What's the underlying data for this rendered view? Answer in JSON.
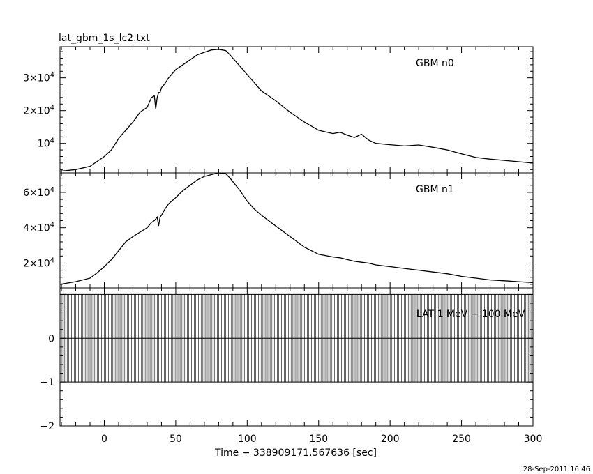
{
  "title": "lat_gbm_1s_lc2.txt",
  "xlabel": "Time − 338909171.567636 [sec]",
  "footer_date": "28-Sep-2011 16:46",
  "chart_data": [
    {
      "type": "line",
      "panel_label": "GBM n0",
      "xlim": [
        -31,
        300
      ],
      "ylim": [
        1000,
        39500
      ],
      "y_ticks": [
        {
          "value": 10000,
          "mant": "",
          "exp": "4"
        },
        {
          "value": 20000,
          "mant": "2",
          "exp": "4"
        },
        {
          "value": 30000,
          "mant": "3",
          "exp": "4"
        }
      ],
      "series": [
        {
          "x": [
            -31,
            -20,
            -10,
            -5,
            0,
            5,
            10,
            15,
            20,
            25,
            30,
            33,
            35,
            36,
            37,
            38,
            39,
            40,
            42,
            45,
            50,
            55,
            60,
            65,
            70,
            75,
            80,
            85,
            88,
            90,
            95,
            100,
            105,
            110,
            120,
            130,
            140,
            150,
            160,
            165,
            170,
            175,
            180,
            185,
            190,
            200,
            210,
            220,
            230,
            240,
            250,
            260,
            270,
            280,
            290,
            300
          ],
          "y": [
            1500,
            2000,
            3000,
            4500,
            6000,
            8000,
            11500,
            14000,
            16500,
            19500,
            21000,
            24000,
            24500,
            20500,
            24000,
            25500,
            25500,
            27000,
            28000,
            30000,
            32500,
            34000,
            35500,
            37000,
            37800,
            38500,
            38700,
            38300,
            37000,
            36000,
            33500,
            31000,
            28500,
            26000,
            23000,
            19500,
            16500,
            14000,
            13000,
            13400,
            12500,
            11800,
            12800,
            11000,
            10000,
            9600,
            9200,
            9500,
            8800,
            8000,
            6800,
            5700,
            5200,
            4800,
            4400,
            4000
          ]
        }
      ]
    },
    {
      "type": "line",
      "panel_label": "GBM n1",
      "xlim": [
        -31,
        300
      ],
      "ylim": [
        6000,
        71000
      ],
      "y_ticks": [
        {
          "value": 20000,
          "mant": "2",
          "exp": "4"
        },
        {
          "value": 40000,
          "mant": "4",
          "exp": "4"
        },
        {
          "value": 60000,
          "mant": "6",
          "exp": "4"
        }
      ],
      "series": [
        {
          "x": [
            -31,
            -20,
            -10,
            -5,
            0,
            5,
            10,
            15,
            20,
            25,
            30,
            33,
            35,
            37,
            38,
            39,
            40,
            42,
            45,
            50,
            55,
            60,
            65,
            70,
            75,
            80,
            85,
            88,
            90,
            95,
            100,
            105,
            110,
            120,
            130,
            140,
            150,
            160,
            165,
            170,
            175,
            180,
            185,
            190,
            200,
            210,
            220,
            230,
            240,
            250,
            260,
            270,
            280,
            290,
            300
          ],
          "y": [
            8000,
            9500,
            11500,
            14500,
            18000,
            22000,
            27000,
            32000,
            35000,
            37500,
            40000,
            43000,
            44000,
            46000,
            41000,
            46000,
            47000,
            50000,
            53500,
            57000,
            61000,
            64000,
            67000,
            69000,
            70000,
            71000,
            70500,
            68000,
            66000,
            61000,
            55000,
            50500,
            47000,
            41000,
            35000,
            29000,
            25000,
            23500,
            23000,
            22000,
            21000,
            20500,
            20000,
            19000,
            18000,
            17000,
            16000,
            15000,
            14000,
            12500,
            11500,
            10500,
            10000,
            9500,
            9000
          ]
        }
      ]
    },
    {
      "type": "bar",
      "panel_label": "LAT 1 MeV − 100 MeV",
      "xlim": [
        -31,
        300
      ],
      "ylim": [
        -2,
        1.15
      ],
      "y_ticks": [
        {
          "value": -2,
          "label": "−2"
        },
        {
          "value": -1,
          "label": "−1"
        },
        {
          "value": 0,
          "label": "0"
        }
      ],
      "bin_width_sec": 1,
      "upper_error": 1,
      "lower_error": -1,
      "counts": 0
    }
  ]
}
